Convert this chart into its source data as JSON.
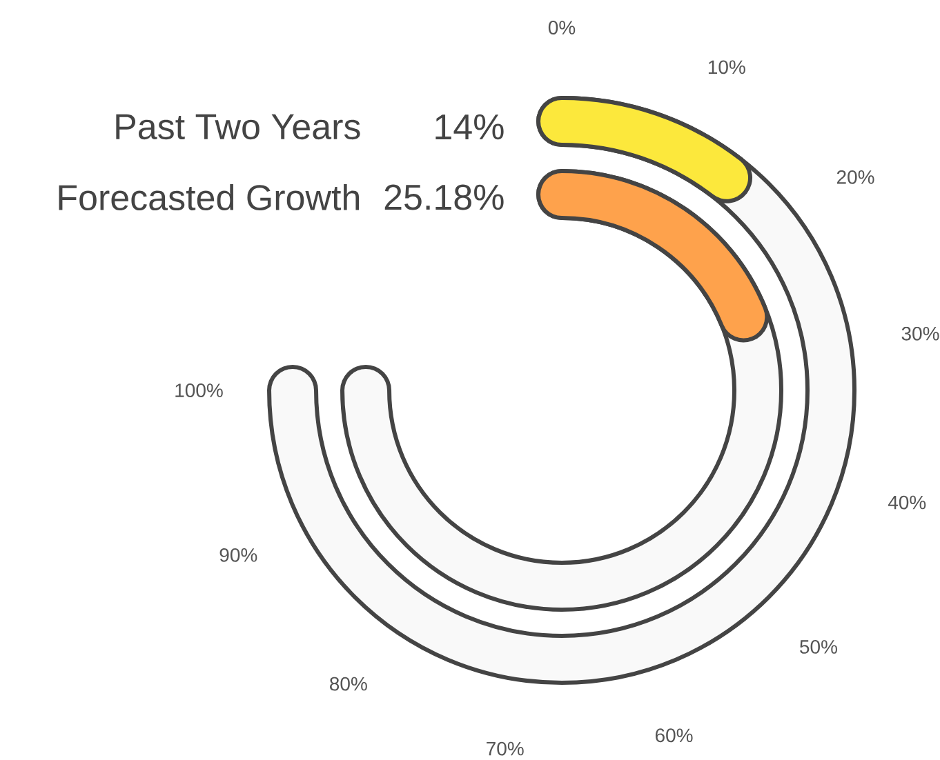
{
  "chart_data": {
    "type": "other",
    "categories": [
      "Past Two Years",
      "Forecasted Growth"
    ],
    "values": [
      14,
      25.18
    ],
    "value_labels": [
      "14%",
      "25.18%"
    ],
    "colors": [
      "#fce83c",
      "#fea24c"
    ],
    "annotations": [
      "0%",
      "10%",
      "20%",
      "30%",
      "40%",
      "50%",
      "60%",
      "70%",
      "80%",
      "90%",
      "100%"
    ]
  }
}
